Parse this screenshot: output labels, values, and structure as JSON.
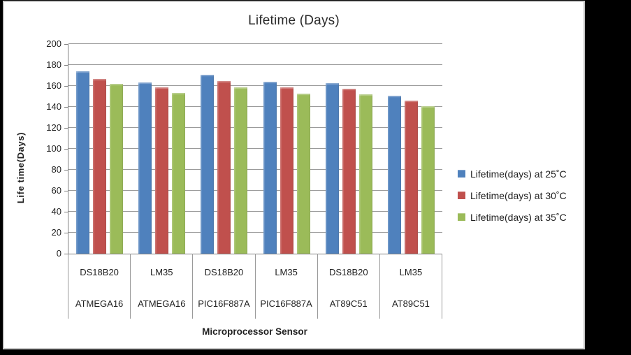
{
  "frame": {
    "background_color": "#000000",
    "panel_background": "#ffffff",
    "panel_border_color": "#c9c9c9"
  },
  "chart_data": {
    "type": "bar",
    "title": "Lifetime (Days)",
    "xlabel": "Microprocessor Sensor",
    "ylabel": "Life time(Days)",
    "ylim": [
      0,
      200
    ],
    "ytick_step": 20,
    "grid": true,
    "legend_position": "right",
    "axis_color": "#808080",
    "gridline_color": "#9a9a9a",
    "categories": [
      {
        "sensor": "DS18B20",
        "microprocessor": "ATMEGA16"
      },
      {
        "sensor": "LM35",
        "microprocessor": "ATMEGA16"
      },
      {
        "sensor": "DS18B20",
        "microprocessor": "PIC16F887A"
      },
      {
        "sensor": "LM35",
        "microprocessor": "PIC16F887A"
      },
      {
        "sensor": "DS18B20",
        "microprocessor": "AT89C51"
      },
      {
        "sensor": "LM35",
        "microprocessor": "AT89C51"
      }
    ],
    "series": [
      {
        "name": "Lifetime(days) at 25˚C",
        "color": "#4F81BD",
        "values": [
          174,
          163.5,
          170.5,
          164,
          162.5,
          151
        ]
      },
      {
        "name": "Lifetime(days) at 30˚C",
        "color": "#C0504D",
        "values": [
          167,
          158.5,
          164.5,
          158.5,
          157.5,
          146
        ]
      },
      {
        "name": "Lifetime(days) at 35˚C",
        "color": "#9BBB59",
        "values": [
          162,
          153.5,
          159,
          153,
          152,
          141
        ]
      }
    ]
  }
}
